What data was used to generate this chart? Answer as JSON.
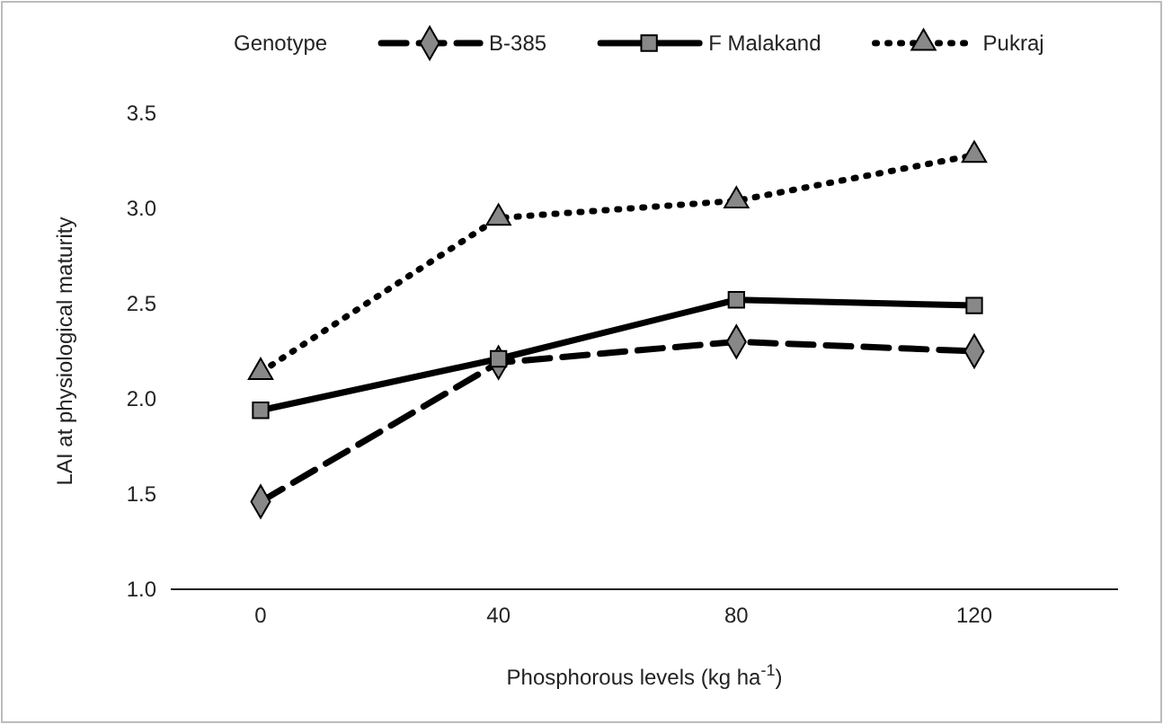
{
  "chart_data": {
    "type": "line",
    "xlabel": "Phosphorous levels (kg ha$^{-1}$)",
    "ylabel": "LAI at physiological maturity",
    "legend_title": "Genotype",
    "categories": [
      "0",
      "40",
      "80",
      "120"
    ],
    "ylim": [
      1.0,
      3.5
    ],
    "yticks": [
      {
        "value": 1,
        "label": "1.0"
      },
      {
        "value": 1.5,
        "label": "1.5"
      },
      {
        "value": 2,
        "label": "2.0"
      },
      {
        "value": 2.5,
        "label": "2.5"
      },
      {
        "value": 3,
        "label": "3.0"
      },
      {
        "value": 3.5,
        "label": "3.5"
      }
    ],
    "grid": false,
    "legend": "top",
    "series": [
      {
        "name": "B-385",
        "color": "#000000",
        "marker": "diamond",
        "line_style": "dashed",
        "values": [
          1.46,
          2.19,
          2.3,
          2.25
        ]
      },
      {
        "name": "F Malakand",
        "color": "#000000",
        "marker": "square",
        "line_style": "solid",
        "values": [
          1.94,
          2.21,
          2.52,
          2.49
        ]
      },
      {
        "name": "Pukraj",
        "color": "#000000",
        "marker": "triangle",
        "line_style": "dotted",
        "values": [
          2.14,
          2.95,
          3.04,
          3.28
        ]
      }
    ]
  }
}
